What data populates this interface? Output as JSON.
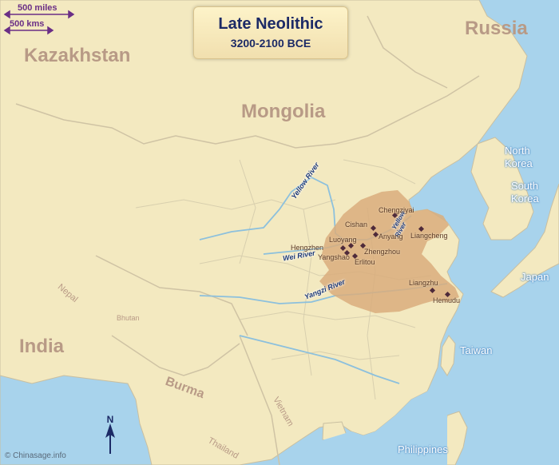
{
  "title": {
    "main": "Late Neolithic",
    "dates": "3200-2100 BCE"
  },
  "scale": {
    "miles": "500 miles",
    "kms": "500 kms"
  },
  "countries": {
    "kazakhstan": "Kazakhstan",
    "russia": "Russia",
    "mongolia": "Mongolia",
    "north_korea_1": "North",
    "north_korea_2": "Korea",
    "south_korea_1": "South",
    "south_korea_2": "Korea",
    "japan": "Japan",
    "taiwan": "Taiwan",
    "india": "India",
    "nepal": "Nepal",
    "bhutan": "Bhutan",
    "burma": "Burma",
    "vietnam": "Vietnam",
    "thailand": "Thailand",
    "philippines": "Philippines"
  },
  "rivers": {
    "yellow_north": "Yellow River",
    "yellow_east_1": "Yellow",
    "yellow_east_2": "River",
    "wei": "Wei River",
    "yangzi": "Yangzi River"
  },
  "sites": [
    "Chengziyai",
    "Cishan",
    "Anyang",
    "Liangcheng",
    "Luoyang",
    "Hengzhen",
    "Zhengzhou",
    "Yangshao",
    "Erlitou",
    "Liangzhu",
    "Hemudu"
  ],
  "north_arrow": "N",
  "credit": "© Chinasage.info",
  "colors": {
    "sea": "#a8d3ec",
    "land": "#f3e9c0",
    "culture_area": "#d9ad7c",
    "site_marker": "#4e2a3a",
    "river": "#8cc0dd"
  }
}
